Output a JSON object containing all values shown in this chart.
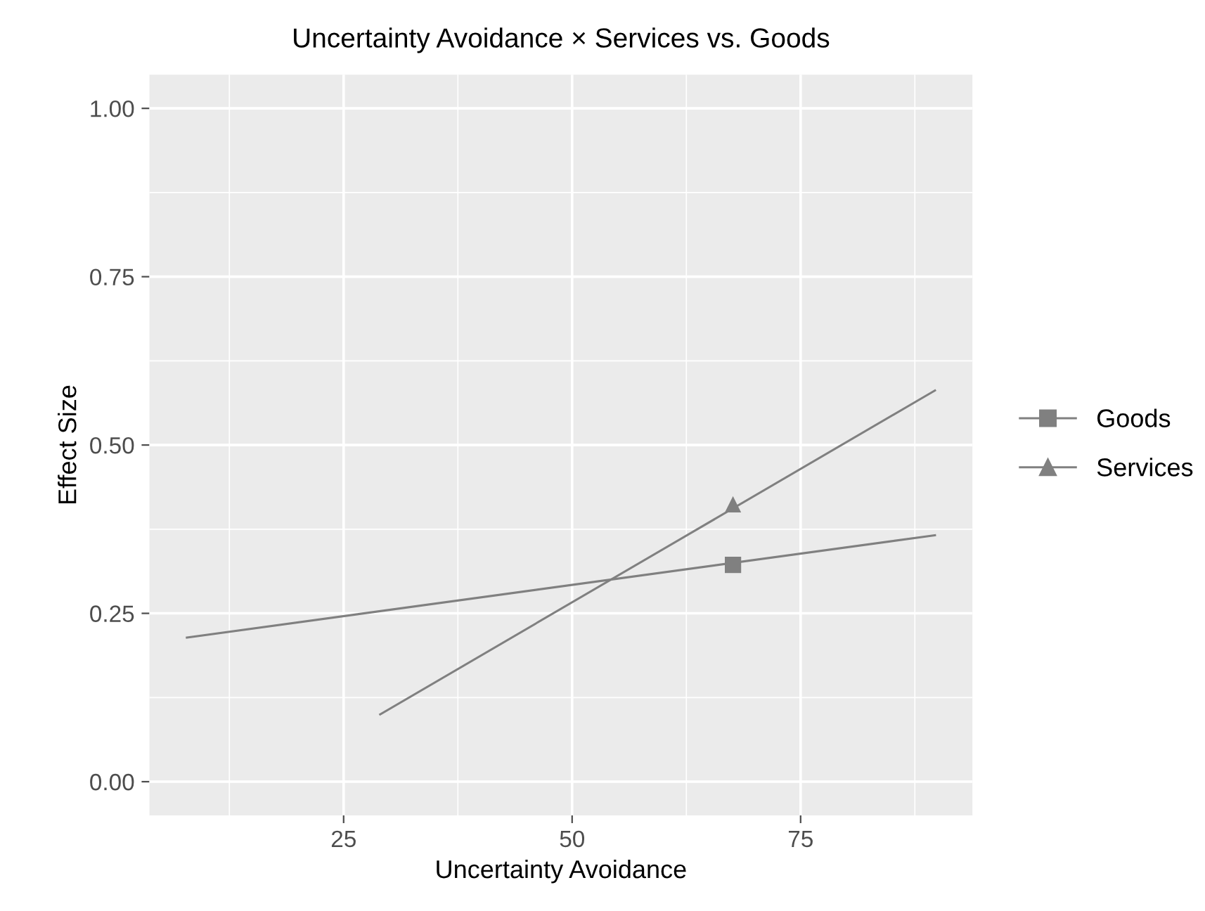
{
  "chart_data": {
    "type": "line",
    "title": "Uncertainty Avoidance × Services vs. Goods",
    "xlabel": "Uncertainty Avoidance",
    "ylabel": "Effect Size",
    "series": [
      {
        "name": "Goods",
        "color": "#808080",
        "x": [
          7.85,
          89.7
        ],
        "values": [
          0.214,
          0.366
        ]
      },
      {
        "name": "Services",
        "color": "#808080",
        "x": [
          29.0,
          89.7
        ],
        "values": [
          0.1,
          0.581
        ]
      },
      {
        "type": "scatter",
        "color": "#808080",
        "x": [
          67.6
        ],
        "values": [
          0.322
        ],
        "marker": "square"
      },
      {
        "type": "scatter",
        "color": "#808080",
        "x": [
          67.6
        ],
        "values": [
          0.412
        ],
        "marker": "triangle"
      }
    ],
    "xlim": [
      3.75,
      93.8
    ],
    "ylim": [
      -0.05,
      1.05
    ],
    "xticks": [
      25,
      50,
      75
    ],
    "yticks": [
      {
        "value": 0,
        "label": "0.00"
      },
      {
        "value": 0.25,
        "label": "0.25"
      },
      {
        "value": 0.5,
        "label": "0.50"
      },
      {
        "value": 0.75,
        "label": "0.75"
      },
      {
        "value": 1,
        "label": "1.00"
      }
    ],
    "grid": true,
    "legend": "right"
  }
}
